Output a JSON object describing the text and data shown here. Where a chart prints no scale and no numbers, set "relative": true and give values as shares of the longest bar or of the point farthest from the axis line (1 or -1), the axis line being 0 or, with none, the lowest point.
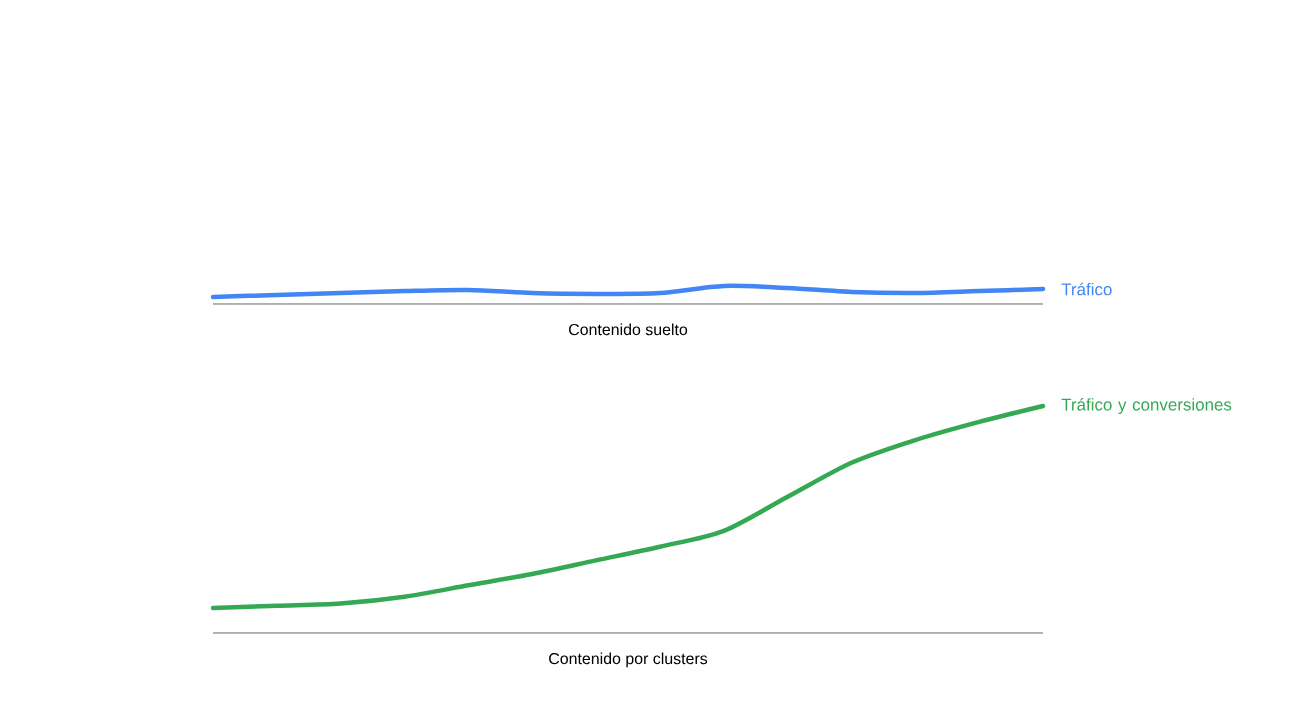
{
  "chart_data": [
    {
      "type": "line",
      "relative": true,
      "xlabel": "Contenido suelto",
      "categories": [
        null,
        null,
        null,
        null,
        null,
        null,
        null,
        null,
        null,
        null,
        null,
        null,
        null,
        null
      ],
      "series": [
        {
          "name": "Tráfico",
          "color": "#4285f4",
          "values": [
            0.39,
            0.5,
            0.61,
            0.72,
            0.78,
            0.61,
            0.56,
            0.61,
            1,
            0.89,
            0.67,
            0.61,
            0.72,
            0.83
          ]
        }
      ]
    },
    {
      "type": "line",
      "relative": true,
      "xlabel": "Contenido por clusters",
      "categories": [
        null,
        null,
        null,
        null,
        null,
        null,
        null,
        null,
        null,
        null,
        null,
        null,
        null,
        null
      ],
      "series": [
        {
          "name": "Tráfico y conversiones",
          "color": "#34a853",
          "values": [
            0.11,
            0.12,
            0.13,
            0.16,
            0.21,
            0.26,
            0.32,
            0.38,
            0.45,
            0.6,
            0.75,
            0.85,
            0.93,
            1
          ]
        }
      ]
    }
  ]
}
